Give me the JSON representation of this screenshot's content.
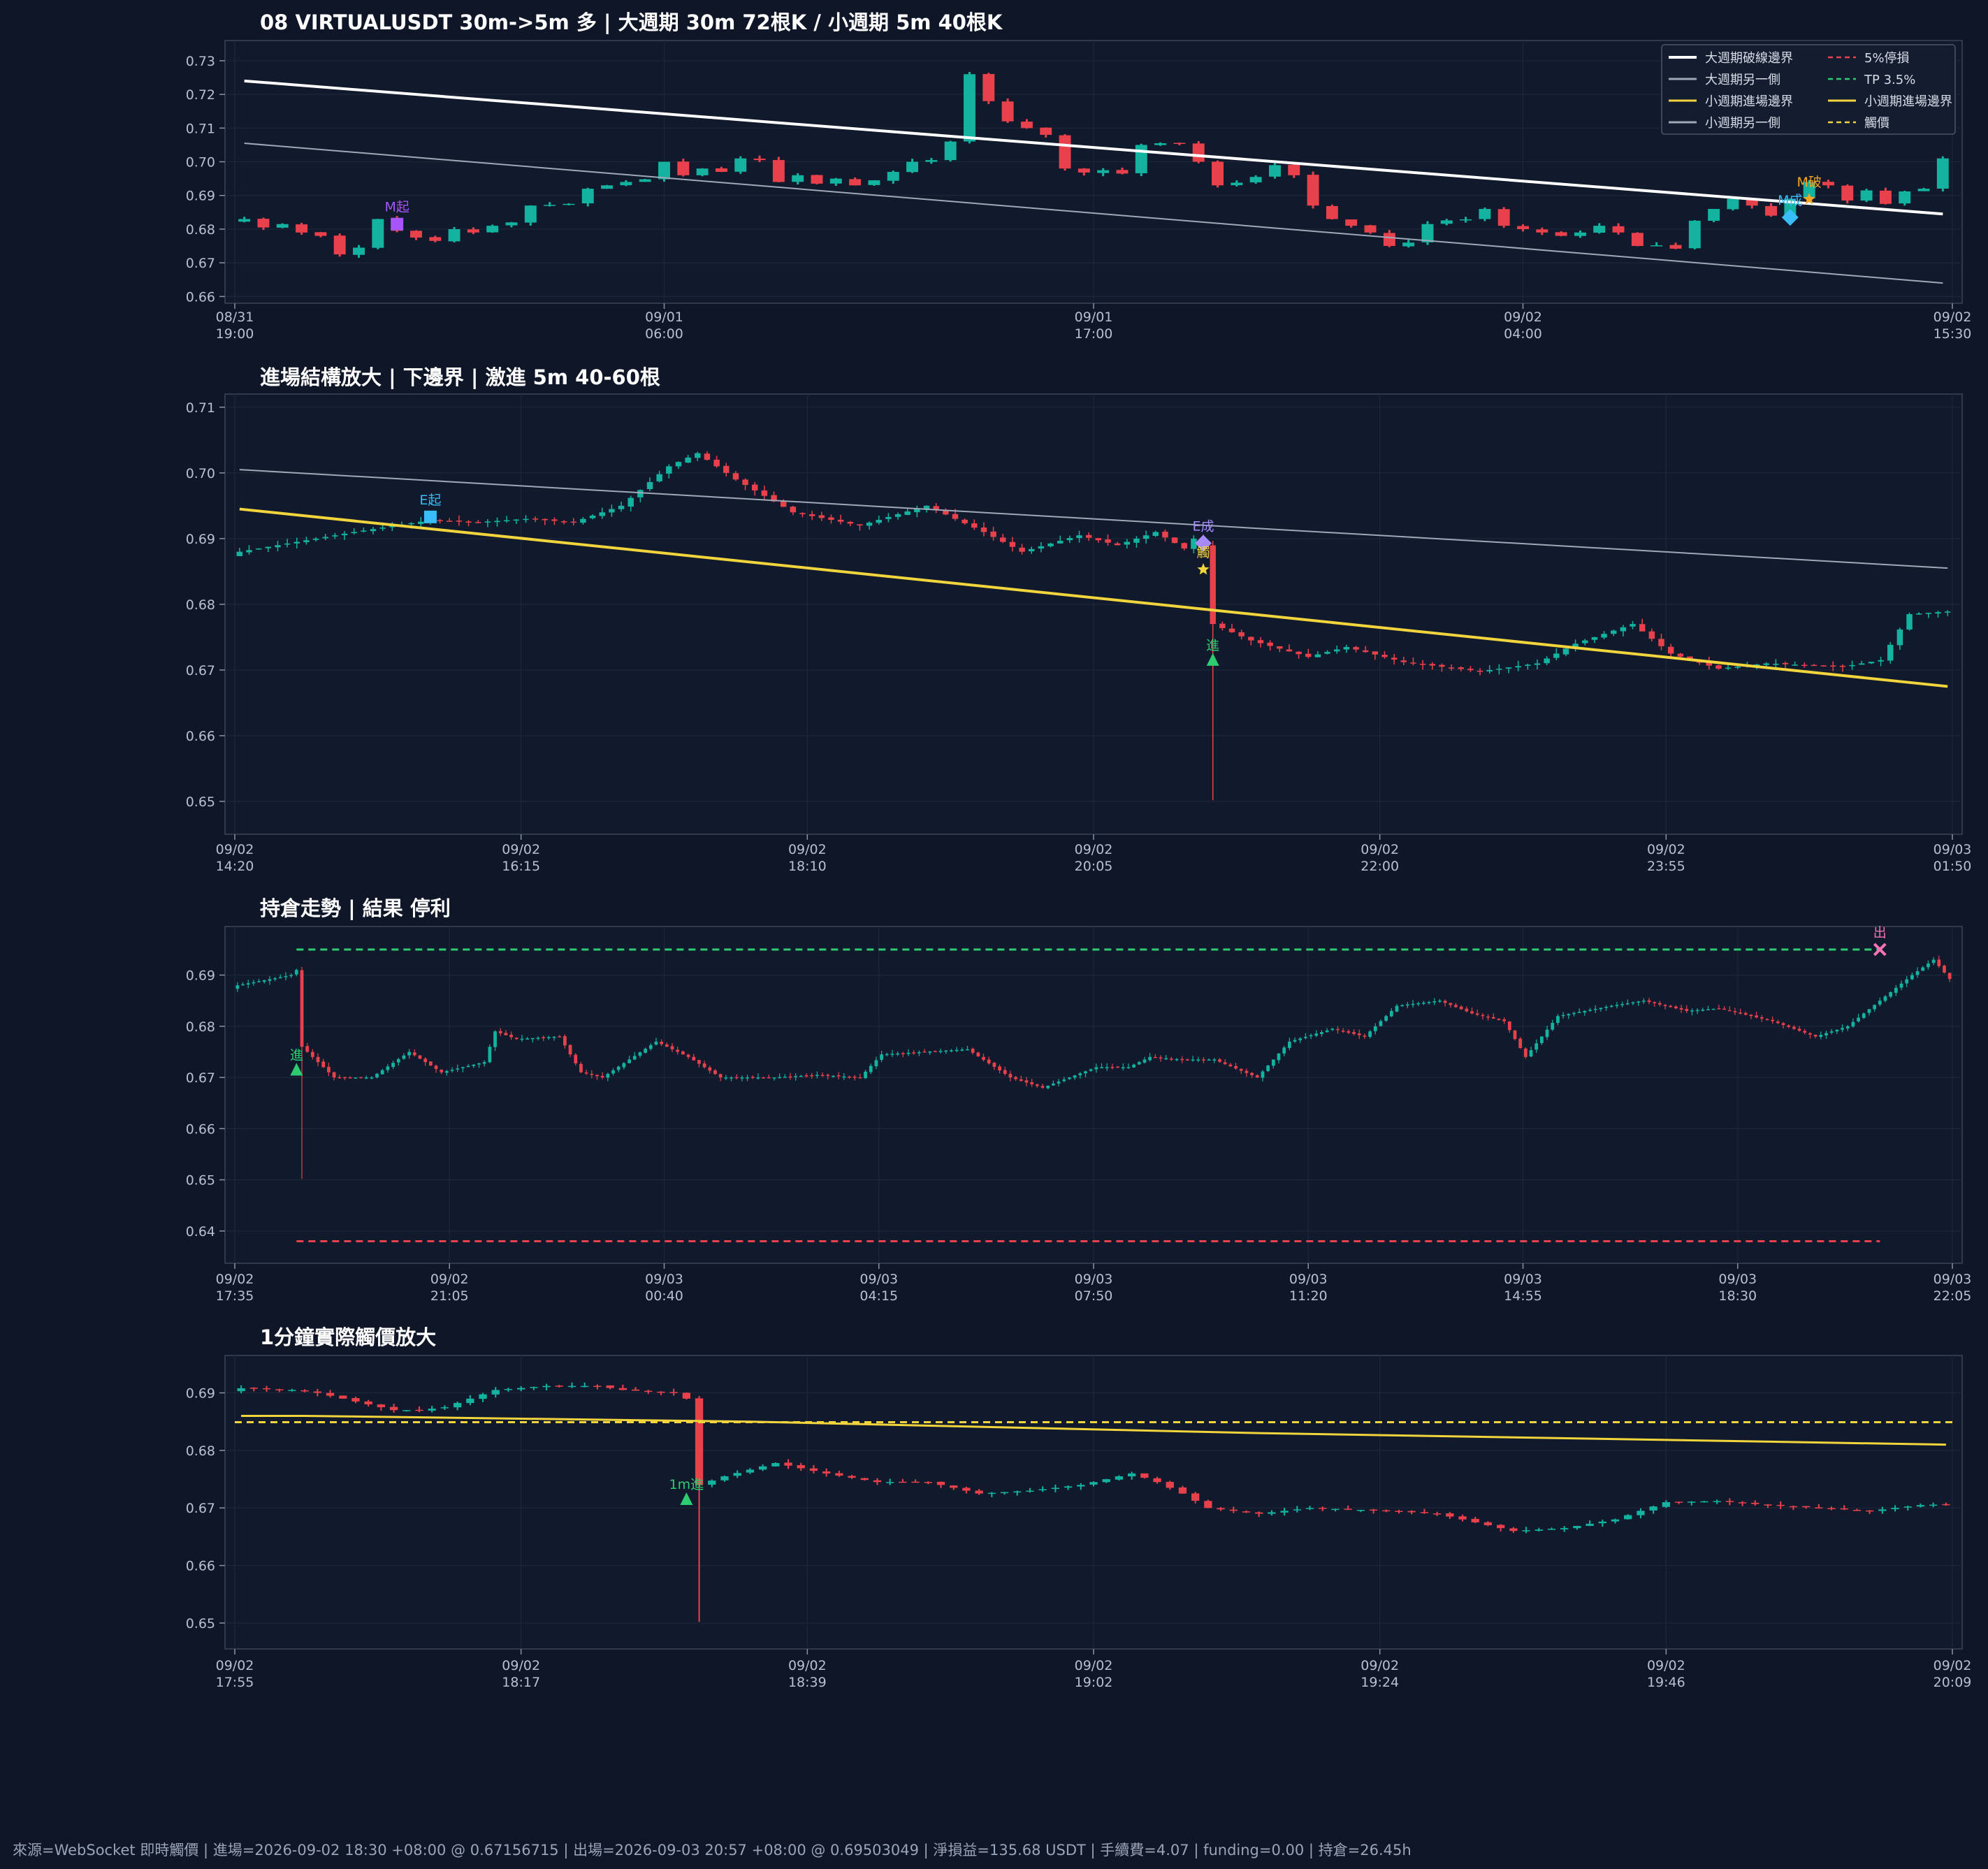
{
  "colors": {
    "background": "#0e1628",
    "plot_bg": "#111a2c",
    "grid": "#1d2738",
    "frame": "#3a4458",
    "up": "#13b3a0",
    "down": "#e8414b",
    "white_line": "#ffffff",
    "gray_line": "#a0a8b8",
    "yellow_line": "#f2d43c",
    "tp_line": "#2ecc71",
    "sl_line": "#e8414b",
    "trigger_line": "#f2d43c"
  },
  "footer_text": "來源=WebSocket 即時觸價 | 進場=2026-09-02 18:30 +08:00 @ 0.67156715 | 出場=2026-09-03 20:57 +08:00 @ 0.69503049 | 淨損益=135.68 USDT | 手續費=4.07 | funding=0.00 | 持倉=26.45h",
  "chart_data": [
    {
      "type": "candlestick",
      "title": "08 VIRTUALUSDT 30m->5m 多 | 大週期 30m 72根K / 小週期 5m 40根K",
      "ylim": [
        0.658,
        0.736
      ],
      "yticks": [
        "0.66",
        "0.67",
        "0.68",
        "0.69",
        "0.70",
        "0.71",
        "0.72",
        "0.73"
      ],
      "xticks": [
        [
          "08/31",
          "19:00"
        ],
        [
          "09/01",
          "06:00"
        ],
        [
          "09/01",
          "17:00"
        ],
        [
          "09/02",
          "04:00"
        ],
        [
          "09/02",
          "15:30"
        ]
      ],
      "n_candles": 90,
      "closes": [
        0.683,
        0.6805,
        0.6815,
        0.679,
        0.678,
        0.6725,
        0.6745,
        0.683,
        0.6795,
        0.6775,
        0.6765,
        0.68,
        0.679,
        0.681,
        0.682,
        0.687,
        0.6872,
        0.6875,
        0.692,
        0.693,
        0.694,
        0.6948,
        0.7,
        0.696,
        0.698,
        0.697,
        0.701,
        0.7005,
        0.694,
        0.696,
        0.6935,
        0.695,
        0.693,
        0.6945,
        0.697,
        0.7,
        0.7005,
        0.706,
        0.726,
        0.718,
        0.712,
        0.71,
        0.708,
        0.698,
        0.6968,
        0.6975,
        0.6965,
        0.705,
        0.7055,
        0.7055,
        0.7,
        0.693,
        0.6938,
        0.6955,
        0.699,
        0.696,
        0.687,
        0.683,
        0.681,
        0.679,
        0.675,
        0.676,
        0.6815,
        0.6826,
        0.6829,
        0.686,
        0.681,
        0.68,
        0.679,
        0.678,
        0.679,
        0.681,
        0.679,
        0.675,
        0.6752,
        0.6742,
        0.6825,
        0.686,
        0.689,
        0.687,
        0.684,
        0.689,
        0.694,
        0.693,
        0.6885,
        0.6915,
        0.6875,
        0.6912,
        0.692,
        0.701
      ],
      "lines": [
        {
          "name": "大週期破線邊界",
          "from": 0.724,
          "to": 0.6845,
          "color": "#ffffff",
          "width": 4
        },
        {
          "name": "大週期另一側",
          "from": 0.7055,
          "to": 0.664,
          "color": "#a0a8b8",
          "width": 2
        }
      ],
      "markers": [
        {
          "label": "M起",
          "index": 8,
          "value": 0.6815,
          "shape": "square",
          "color": "#a855f7"
        },
        {
          "label": "M破",
          "index": 82,
          "value": 0.6889,
          "shape": "star",
          "color": "#f5a524"
        },
        {
          "label": "M成",
          "index": 81,
          "value": 0.6835,
          "shape": "diamond",
          "color": "#38bdf8"
        }
      ],
      "legend": {
        "position": "top-right",
        "items": [
          {
            "label": "大週期破線邊界",
            "color": "#ffffff",
            "style": "solid"
          },
          {
            "label": "5%停損",
            "color": "#e8414b",
            "style": "dashed"
          },
          {
            "label": "大週期另一側",
            "color": "#a0a8b8",
            "style": "solid"
          },
          {
            "label": "TP 3.5%",
            "color": "#2ecc71",
            "style": "dashed"
          },
          {
            "label": "小週期進場邊界",
            "color": "#f2d43c",
            "style": "solid"
          },
          {
            "label": "小週期進場邊界",
            "color": "#f2d43c",
            "style": "solid"
          },
          {
            "label": "小週期另一側",
            "color": "#a0a8b8",
            "style": "solid"
          },
          {
            "label": "觸價",
            "color": "#f2d43c",
            "style": "dashed"
          }
        ]
      }
    },
    {
      "type": "candlestick",
      "title": "進場結構放大 | 下邊界 | 激進 5m 40-60根",
      "ylim": [
        0.645,
        0.712
      ],
      "yticks": [
        "0.65",
        "0.66",
        "0.67",
        "0.68",
        "0.69",
        "0.70",
        "0.71"
      ],
      "xticks": [
        [
          "09/02",
          "14:20"
        ],
        [
          "09/02",
          "16:15"
        ],
        [
          "09/02",
          "18:10"
        ],
        [
          "09/02",
          "20:05"
        ],
        [
          "09/02",
          "22:00"
        ],
        [
          "09/02",
          "23:55"
        ],
        [
          "09/03",
          "01:50"
        ]
      ],
      "n_candles": 180,
      "anchors": [
        [
          0,
          0.688
        ],
        [
          8,
          0.69
        ],
        [
          12,
          0.691
        ],
        [
          20,
          0.6928
        ],
        [
          25,
          0.6925
        ],
        [
          30,
          0.693
        ],
        [
          35,
          0.6925
        ],
        [
          40,
          0.695
        ],
        [
          45,
          0.701
        ],
        [
          48,
          0.703
        ],
        [
          52,
          0.699
        ],
        [
          58,
          0.694
        ],
        [
          65,
          0.692
        ],
        [
          72,
          0.695
        ],
        [
          78,
          0.691
        ],
        [
          82,
          0.688
        ],
        [
          88,
          0.6905
        ],
        [
          92,
          0.689
        ],
        [
          96,
          0.691
        ],
        [
          99,
          0.6885
        ],
        [
          100,
          0.69
        ],
        [
          101,
          0.689
        ],
        [
          102,
          0.677
        ],
        [
          106,
          0.6745
        ],
        [
          112,
          0.672
        ],
        [
          116,
          0.6735
        ],
        [
          122,
          0.6712
        ],
        [
          130,
          0.6698
        ],
        [
          136,
          0.671
        ],
        [
          140,
          0.674
        ],
        [
          146,
          0.677
        ],
        [
          150,
          0.6725
        ],
        [
          155,
          0.6702
        ],
        [
          160,
          0.671
        ],
        [
          168,
          0.6705
        ],
        [
          172,
          0.6715
        ],
        [
          175,
          0.6785
        ],
        [
          180,
          0.679
        ]
      ],
      "spikes": [
        [
          102,
          0.6502,
          0.6885
        ],
        [
          101,
          0.688,
          0.6892
        ]
      ],
      "lines": [
        {
          "name": "小週期另一側",
          "from": 0.7005,
          "to": 0.6855,
          "color": "#a0a8b8",
          "width": 2
        },
        {
          "name": "小週期進場邊界",
          "from": 0.6945,
          "to": 0.6675,
          "color": "#f2d43c",
          "width": 4
        }
      ],
      "markers": [
        {
          "label": "E起",
          "index": 20,
          "value": 0.6933,
          "shape": "square",
          "color": "#38bdf8"
        },
        {
          "label": "E成",
          "index": 101,
          "value": 0.6893,
          "shape": "diamond",
          "color": "#a78bfa"
        },
        {
          "label": "觸",
          "index": 101,
          "value": 0.6853,
          "shape": "star",
          "color": "#f2d43c"
        },
        {
          "label": "進",
          "index": 102,
          "value": 0.6716,
          "shape": "triangle",
          "color": "#2ecc71"
        }
      ]
    },
    {
      "type": "candlestick",
      "title": "持倉走勢 | 結果 停利",
      "ylim": [
        0.6337,
        0.6995
      ],
      "yticks": [
        "0.64",
        "0.65",
        "0.66",
        "0.67",
        "0.68",
        "0.69"
      ],
      "xticks": [
        [
          "09/02",
          "17:35"
        ],
        [
          "09/02",
          "21:05"
        ],
        [
          "09/03",
          "00:40"
        ],
        [
          "09/03",
          "04:15"
        ],
        [
          "09/03",
          "07:50"
        ],
        [
          "09/03",
          "11:20"
        ],
        [
          "09/03",
          "14:55"
        ],
        [
          "09/03",
          "18:30"
        ],
        [
          "09/03",
          "22:05"
        ]
      ],
      "n_candles": 320,
      "anchors": [
        [
          0,
          0.688
        ],
        [
          5,
          0.689
        ],
        [
          10,
          0.69
        ],
        [
          11,
          0.691
        ],
        [
          12,
          0.676
        ],
        [
          18,
          0.67
        ],
        [
          25,
          0.67
        ],
        [
          32,
          0.675
        ],
        [
          38,
          0.671
        ],
        [
          46,
          0.673
        ],
        [
          48,
          0.679
        ],
        [
          52,
          0.6775
        ],
        [
          60,
          0.678
        ],
        [
          64,
          0.671
        ],
        [
          68,
          0.67
        ],
        [
          78,
          0.677
        ],
        [
          84,
          0.674
        ],
        [
          90,
          0.67
        ],
        [
          100,
          0.67
        ],
        [
          108,
          0.6705
        ],
        [
          116,
          0.67
        ],
        [
          120,
          0.6745
        ],
        [
          128,
          0.675
        ],
        [
          136,
          0.6755
        ],
        [
          144,
          0.67
        ],
        [
          150,
          0.668
        ],
        [
          160,
          0.672
        ],
        [
          166,
          0.672
        ],
        [
          170,
          0.674
        ],
        [
          176,
          0.6735
        ],
        [
          182,
          0.6735
        ],
        [
          190,
          0.67
        ],
        [
          196,
          0.677
        ],
        [
          204,
          0.6795
        ],
        [
          210,
          0.678
        ],
        [
          216,
          0.684
        ],
        [
          224,
          0.685
        ],
        [
          230,
          0.6825
        ],
        [
          236,
          0.681
        ],
        [
          240,
          0.674
        ],
        [
          246,
          0.682
        ],
        [
          256,
          0.684
        ],
        [
          262,
          0.685
        ],
        [
          270,
          0.683
        ],
        [
          276,
          0.6835
        ],
        [
          286,
          0.681
        ],
        [
          294,
          0.678
        ],
        [
          300,
          0.68
        ],
        [
          306,
          0.685
        ],
        [
          312,
          0.69
        ],
        [
          316,
          0.693
        ],
        [
          320,
          0.688
        ]
      ],
      "spikes": [
        [
          12,
          0.6502,
          0.6912
        ]
      ],
      "lines": [
        {
          "name": "TP 3.5%",
          "value": 0.695,
          "color": "#2ecc71",
          "style": "dashed",
          "from_index": 11,
          "to_index": 306
        },
        {
          "name": "5%停損",
          "value": 0.638,
          "color": "#e8414b",
          "style": "dashed",
          "from_index": 11,
          "to_index": 306
        }
      ],
      "markers": [
        {
          "label": "進",
          "index": 11,
          "value": 0.6716,
          "shape": "triangle",
          "color": "#2ecc71"
        },
        {
          "label": "出",
          "index": 306,
          "value": 0.695,
          "shape": "x",
          "color": "#f472b6"
        }
      ]
    },
    {
      "type": "candlestick",
      "title": "1分鐘實際觸價放大",
      "ylim": [
        0.6455,
        0.6965
      ],
      "yticks": [
        "0.65",
        "0.66",
        "0.67",
        "0.68",
        "0.69"
      ],
      "xticks": [
        [
          "09/02",
          "17:55"
        ],
        [
          "09/02",
          "18:17"
        ],
        [
          "09/02",
          "18:39"
        ],
        [
          "09/02",
          "19:02"
        ],
        [
          "09/02",
          "19:24"
        ],
        [
          "09/02",
          "19:46"
        ],
        [
          "09/02",
          "20:09"
        ]
      ],
      "n_candles": 135,
      "anchors": [
        [
          0,
          0.6908
        ],
        [
          4,
          0.6905
        ],
        [
          6,
          0.69
        ],
        [
          8,
          0.689
        ],
        [
          10,
          0.688
        ],
        [
          12,
          0.687
        ],
        [
          14,
          0.687
        ],
        [
          16,
          0.6875
        ],
        [
          20,
          0.6905
        ],
        [
          24,
          0.6912
        ],
        [
          28,
          0.6912
        ],
        [
          30,
          0.6905
        ],
        [
          34,
          0.69
        ],
        [
          35,
          0.689
        ],
        [
          36,
          0.674
        ],
        [
          38,
          0.6755
        ],
        [
          42,
          0.6778
        ],
        [
          46,
          0.676
        ],
        [
          50,
          0.6745
        ],
        [
          54,
          0.6745
        ],
        [
          58,
          0.6725
        ],
        [
          62,
          0.673
        ],
        [
          66,
          0.674
        ],
        [
          68,
          0.675
        ],
        [
          70,
          0.676
        ],
        [
          72,
          0.6745
        ],
        [
          74,
          0.6725
        ],
        [
          76,
          0.67
        ],
        [
          80,
          0.669
        ],
        [
          84,
          0.67
        ],
        [
          90,
          0.6695
        ],
        [
          94,
          0.669
        ],
        [
          98,
          0.667
        ],
        [
          100,
          0.666
        ],
        [
          104,
          0.6665
        ],
        [
          108,
          0.668
        ],
        [
          112,
          0.671
        ],
        [
          116,
          0.6712
        ],
        [
          120,
          0.6705
        ],
        [
          124,
          0.67
        ],
        [
          128,
          0.6695
        ],
        [
          132,
          0.6705
        ],
        [
          135,
          0.6707
        ]
      ],
      "spikes": [
        [
          36,
          0.6502,
          0.6892
        ]
      ],
      "lines": [
        {
          "name": "觸價",
          "value": 0.6849,
          "color": "#f2d43c",
          "style": "dashed"
        },
        {
          "name": "小週期進場邊界",
          "points": [
            [
              0,
              0.686
            ],
            [
              5,
              0.686
            ],
            [
              40,
              0.685
            ],
            [
              80,
              0.683
            ],
            [
              134,
              0.681
            ]
          ],
          "color": "#f2d43c",
          "style": "solid"
        }
      ],
      "markers": [
        {
          "label": "1m進",
          "index": 35,
          "value": 0.6716,
          "shape": "triangle",
          "color": "#2ecc71"
        }
      ]
    }
  ]
}
